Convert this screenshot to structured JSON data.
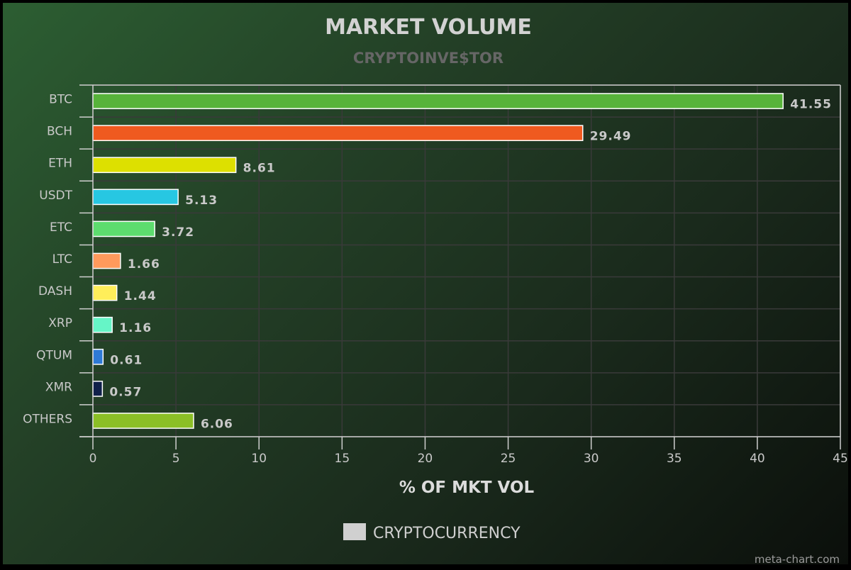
{
  "chart_data": {
    "type": "bar",
    "orientation": "horizontal",
    "title": "MARKET VOLUME",
    "subtitle": "CRYPTOINVE$TOR",
    "xlabel": "% OF MKT VOL",
    "ylabel": "",
    "xlim": [
      0,
      45
    ],
    "x_ticks": [
      0,
      5,
      10,
      15,
      20,
      25,
      30,
      35,
      40,
      45
    ],
    "grid": true,
    "legend_position": "bottom",
    "categories": [
      "BTC",
      "BCH",
      "ETH",
      "USDT",
      "ETC",
      "LTC",
      "DASH",
      "XRP",
      "QTUM",
      "XMR",
      "OTHERS"
    ],
    "series": [
      {
        "name": "CRYPTOCURRENCY",
        "values": [
          41.55,
          29.49,
          8.61,
          5.13,
          3.72,
          1.66,
          1.44,
          1.16,
          0.61,
          0.57,
          6.06
        ],
        "data_labels": [
          "41.55",
          "29.49",
          "8.61",
          "5.13",
          "3.72",
          "1.66",
          "1.44",
          "1.16",
          "0.61",
          "0.57",
          "6.06"
        ],
        "colors": [
          "#57b33a",
          "#ef5a1f",
          "#dde000",
          "#27c7e2",
          "#5ddc6e",
          "#ff9a5c",
          "#ffee5a",
          "#66f5c7",
          "#2e7ad6",
          "#10204a",
          "#8bbf26"
        ]
      }
    ],
    "legend_swatch_color": "#d0d0d0"
  },
  "credit": "meta-chart.com"
}
